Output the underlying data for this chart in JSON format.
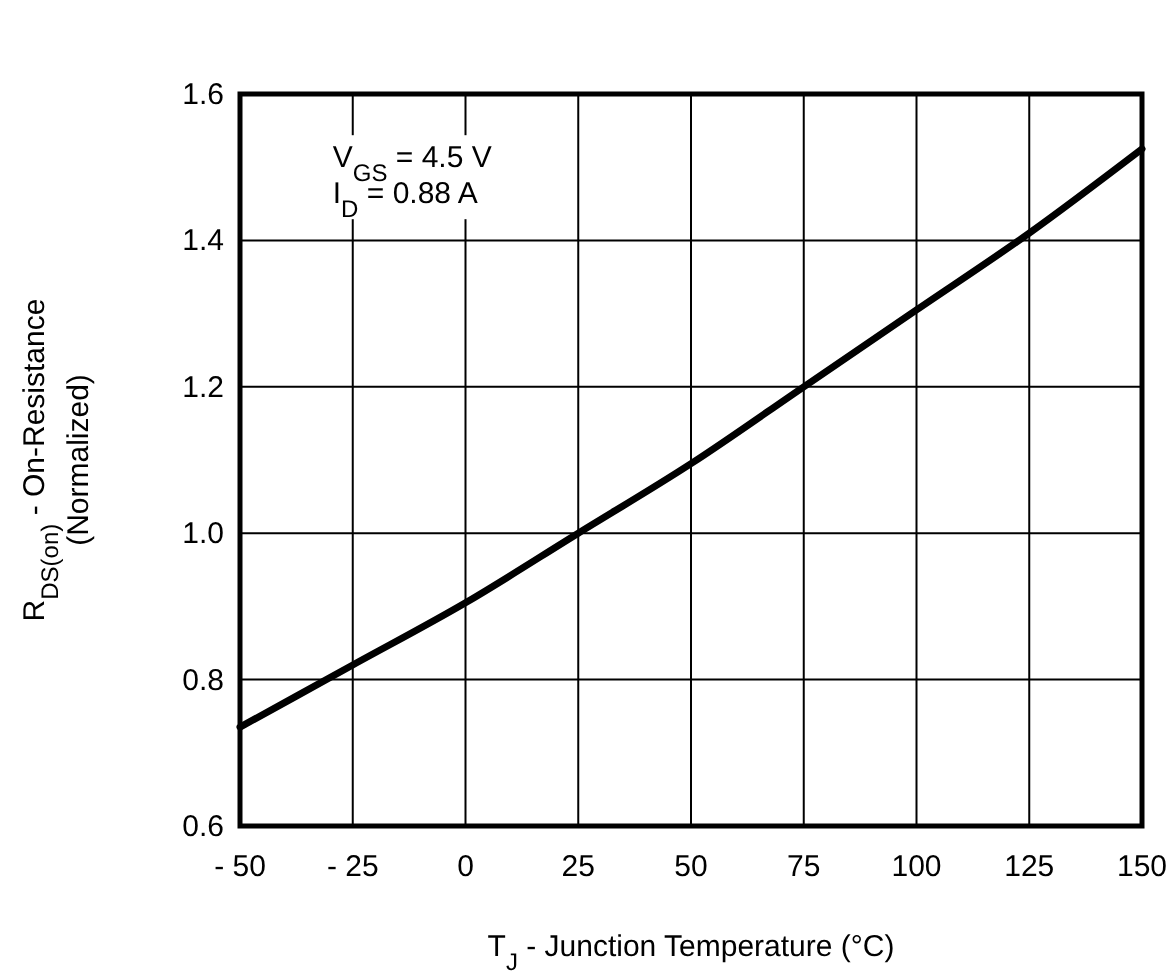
{
  "chart_data": {
    "type": "line",
    "xlabel": "T$_{J}$ - Junction Temperature (°C)",
    "ylabel": "R$_{DS(on)}$ - On-Resistance\n(Normalized)",
    "annotations": [
      "V$_{GS}$ = 4.5 V\nI$_{D}$ = 0.88 A"
    ],
    "x": [
      -50,
      -25,
      0,
      25,
      50,
      75,
      100,
      125,
      150
    ],
    "series": [
      {
        "color": "#000000",
        "values": [
          0.735,
          0.82,
          0.905,
          1.0,
          1.095,
          1.2,
          1.305,
          1.41,
          1.525
        ]
      }
    ],
    "xlim": [
      -50,
      150
    ],
    "xticks": [
      {
        "value": -50,
        "label": "- 50"
      },
      {
        "value": -25,
        "label": "- 25"
      },
      0,
      25,
      50,
      75,
      100,
      125,
      150
    ],
    "ylim": [
      0.6,
      1.6
    ],
    "yticks": [
      {
        "value": 0.6,
        "label": "0.6"
      },
      {
        "value": 0.8,
        "label": "0.8"
      },
      {
        "value": 1.0,
        "label": "1.0"
      },
      {
        "value": 1.2,
        "label": "1.2"
      },
      {
        "value": 1.4,
        "label": "1.4"
      },
      {
        "value": 1.6,
        "label": "1.6"
      }
    ],
    "grid": true,
    "line_style": "solid",
    "marker": "none"
  }
}
